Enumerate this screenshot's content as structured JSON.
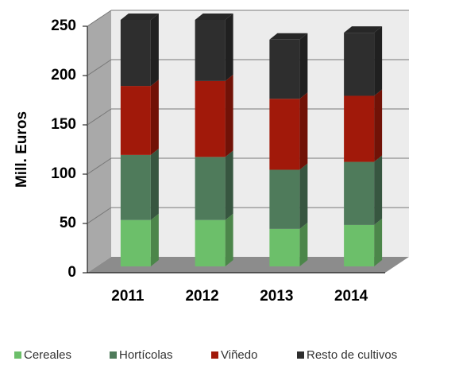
{
  "chart_data": {
    "type": "bar",
    "stacked": true,
    "y_label": "Mill. Euros",
    "categories": [
      "2011",
      "2012",
      "2013",
      "2014"
    ],
    "series": [
      {
        "name": "Cereales",
        "color": "#6cbf6a",
        "values": [
          47,
          47,
          38,
          42
        ]
      },
      {
        "name": "Hortícolas",
        "color": "#4f7b5b",
        "values": [
          66,
          64,
          60,
          64
        ]
      },
      {
        "name": "Viñedo",
        "color": "#a1190a",
        "values": [
          70,
          77,
          72,
          67
        ]
      },
      {
        "name": "Resto de cultivos",
        "color": "#2e2e2e",
        "values": [
          67,
          62,
          60,
          64
        ]
      }
    ],
    "ylim": [
      0,
      250
    ],
    "yticks": [
      0,
      50,
      100,
      150,
      200,
      250
    ],
    "grid": true
  }
}
